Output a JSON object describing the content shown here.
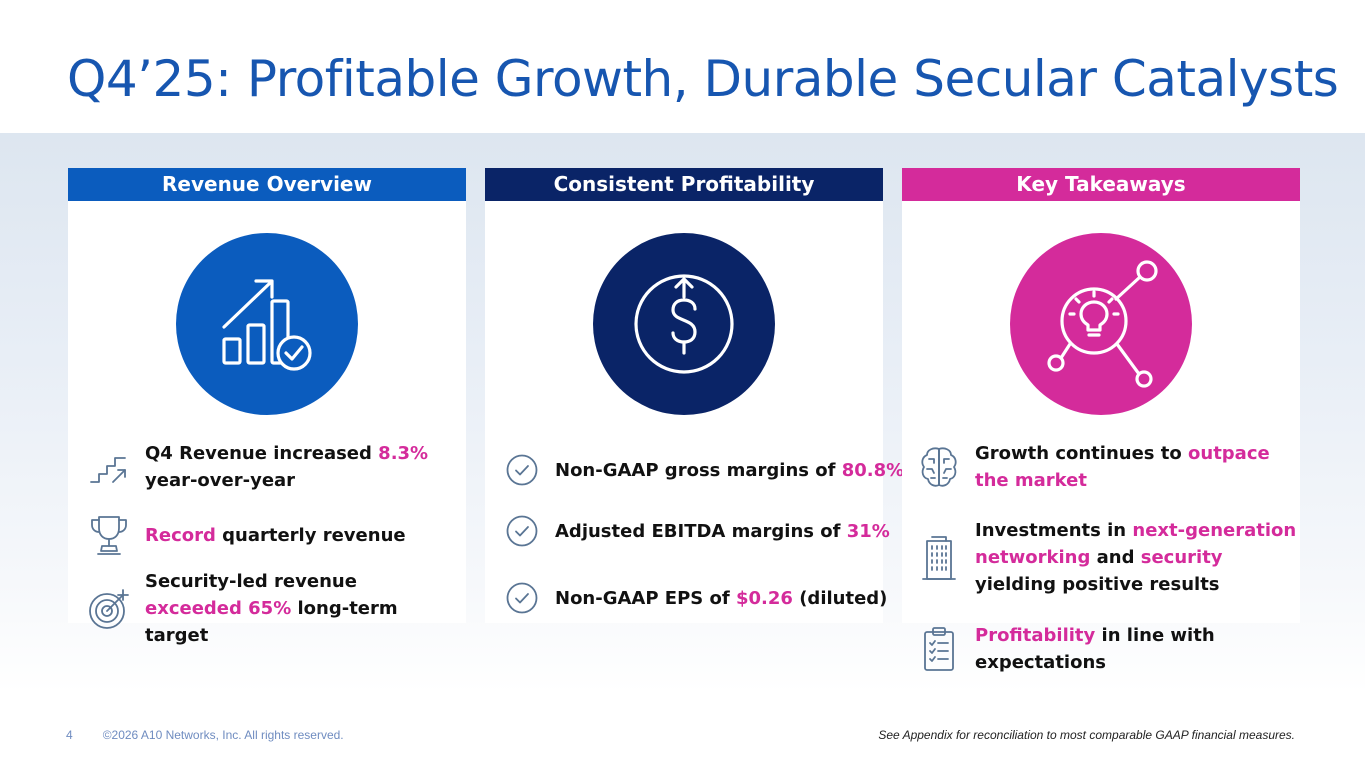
{
  "title": "Q4’25: Profitable Growth, Durable Secular Catalysts",
  "colors": {
    "title": "#1756b0",
    "revenue_header": "#0b5cbe",
    "profit_header": "#0a2467",
    "takeaway_header": "#d42b9b",
    "highlight": "#d42b9b",
    "icon_stroke": "#5a7594"
  },
  "revenue": {
    "header": "Revenue Overview",
    "icon": "bar-chart-growth-check-icon",
    "items": [
      {
        "icon": "stairs-arrow-icon",
        "parts": [
          {
            "t": "Q4 Revenue increased "
          },
          {
            "t": "8.3%",
            "hl": true
          },
          {
            "t": " year-over-year"
          }
        ]
      },
      {
        "icon": "trophy-icon",
        "parts": [
          {
            "t": "Record",
            "hl": true
          },
          {
            "t": " quarterly revenue"
          }
        ]
      },
      {
        "icon": "target-icon",
        "parts": [
          {
            "t": "Security-led revenue "
          },
          {
            "t": "exceeded 65%",
            "hl": true
          },
          {
            "t": " long-term target"
          }
        ]
      }
    ]
  },
  "profit": {
    "header": "Consistent Profitability",
    "icon": "dollar-up-icon",
    "items": [
      {
        "icon": "check-circle-icon",
        "parts": [
          {
            "t": "Non-GAAP gross margins of "
          },
          {
            "t": "80.8%",
            "hl": true
          }
        ]
      },
      {
        "icon": "check-circle-icon",
        "parts": [
          {
            "t": "Adjusted EBITDA margins of "
          },
          {
            "t": "31%",
            "hl": true
          }
        ]
      },
      {
        "icon": "check-circle-icon",
        "parts": [
          {
            "t": "Non-GAAP EPS of "
          },
          {
            "t": "$0.26",
            "hl": true
          },
          {
            "t": " (diluted)"
          }
        ]
      }
    ]
  },
  "takeaways": {
    "header": "Key Takeaways",
    "icon": "lightbulb-network-icon",
    "items": [
      {
        "icon": "brain-circuit-icon",
        "parts": [
          {
            "t": "Growth continues to "
          },
          {
            "t": "outpace the market",
            "hl": true
          }
        ]
      },
      {
        "icon": "building-icon",
        "parts": [
          {
            "t": "Investments in "
          },
          {
            "t": "next-generation networking",
            "hl": true
          },
          {
            "t": " and "
          },
          {
            "t": "security",
            "hl": true
          },
          {
            "t": " yielding positive results"
          }
        ]
      },
      {
        "icon": "clipboard-checklist-icon",
        "parts": [
          {
            "t": "Profitability",
            "hl": true
          },
          {
            "t": " in line with expectations"
          }
        ]
      }
    ]
  },
  "footer": {
    "page": "4",
    "copyright": "©2026 A10 Networks, Inc. All rights reserved.",
    "note": "See Appendix for reconciliation to most comparable GAAP financial measures."
  }
}
